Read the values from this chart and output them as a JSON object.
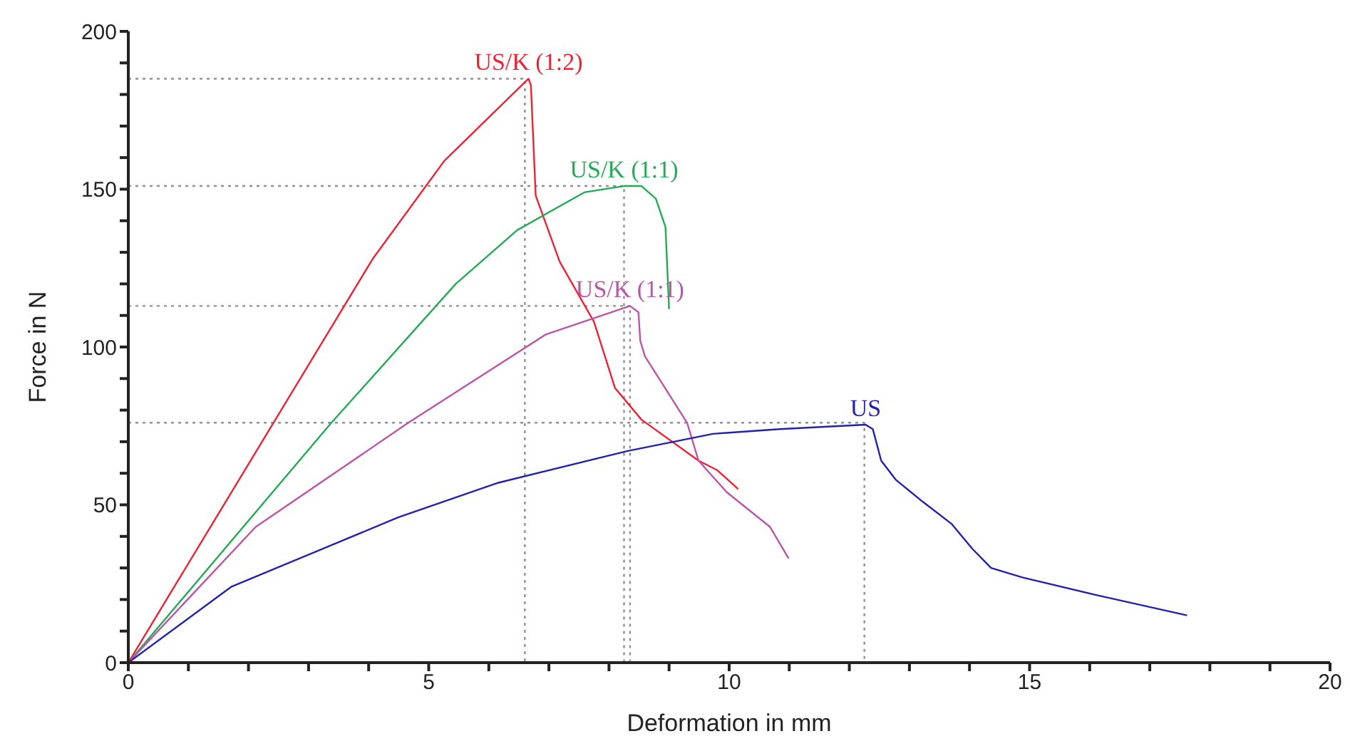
{
  "chart_data": {
    "type": "line",
    "xlabel": "Deformation in mm",
    "ylabel": "Force in N",
    "xlim": [
      0,
      20
    ],
    "ylim": [
      0,
      200
    ],
    "xticks": [
      0,
      {
        "value": 1,
        "label": null
      },
      {
        "value": 2,
        "label": null
      },
      {
        "value": 3,
        "label": null
      },
      {
        "value": 4,
        "label": null
      },
      5,
      {
        "value": 6,
        "label": null
      },
      {
        "value": 7,
        "label": null
      },
      {
        "value": 8,
        "label": null
      },
      {
        "value": 9,
        "label": null
      },
      10,
      {
        "value": 11,
        "label": null
      },
      {
        "value": 12,
        "label": null
      },
      {
        "value": 13,
        "label": null
      },
      {
        "value": 14,
        "label": null
      },
      15,
      {
        "value": 16,
        "label": null
      },
      {
        "value": 17,
        "label": null
      },
      {
        "value": 18,
        "label": null
      },
      {
        "value": 19,
        "label": null
      },
      20
    ],
    "yticks": [
      0,
      {
        "value": 10,
        "label": null
      },
      {
        "value": 20,
        "label": null
      },
      {
        "value": 30,
        "label": null
      },
      {
        "value": 40,
        "label": null
      },
      50,
      {
        "value": 60,
        "label": null
      },
      {
        "value": 70,
        "label": null
      },
      {
        "value": 80,
        "label": null
      },
      {
        "value": 90,
        "label": null
      },
      100,
      {
        "value": 110,
        "label": null
      },
      {
        "value": 120,
        "label": null
      },
      {
        "value": 130,
        "label": null
      },
      {
        "value": 140,
        "label": null
      },
      150,
      {
        "value": 160,
        "label": null
      },
      {
        "value": 170,
        "label": null
      },
      {
        "value": 180,
        "label": null
      },
      {
        "value": 190,
        "label": null
      },
      200
    ],
    "grid": false,
    "legend": false,
    "marker": "none",
    "line_style": "solid",
    "series": [
      {
        "type": "line",
        "line_style": "dotted",
        "color": "#909090",
        "x": [
          0,
          6.6,
          6.6
        ],
        "values": [
          185,
          185,
          0
        ]
      },
      {
        "type": "line",
        "line_style": "dotted",
        "color": "#909090",
        "x": [
          0,
          8.25,
          8.25
        ],
        "values": [
          151,
          151,
          0
        ]
      },
      {
        "type": "line",
        "line_style": "dotted",
        "color": "#909090",
        "x": [
          0,
          8.35,
          8.35
        ],
        "values": [
          113,
          113,
          0
        ]
      },
      {
        "type": "line",
        "line_style": "dotted",
        "color": "#909090",
        "x": [
          0,
          12.25,
          12.25
        ],
        "values": [
          76,
          76,
          0
        ]
      },
      {
        "name": "US/K (1:2)",
        "color": "#ee2233",
        "x": [
          0,
          4.07,
          5.26,
          6.66,
          6.7,
          6.78,
          7.18,
          7.75,
          8.1,
          8.54,
          9.49,
          9.8,
          10.15
        ],
        "values": [
          0,
          128,
          159,
          185,
          183,
          148,
          127,
          108,
          87,
          77,
          64,
          61,
          55
        ]
      },
      {
        "name": "US/K (1:1)",
        "color": "#22aa55",
        "x": [
          0,
          3.38,
          5.45,
          6.47,
          7.59,
          8.25,
          8.54,
          8.78,
          8.94,
          9.0
        ],
        "values": [
          0,
          76,
          120,
          137,
          149,
          151,
          151,
          147,
          138,
          112
        ]
      },
      {
        "name": "US/K (1:1)",
        "color": "#bb55aa",
        "x": [
          0,
          2.12,
          4.66,
          6.95,
          8.35,
          8.49,
          8.52,
          8.6,
          9.3,
          9.49,
          9.96,
          10.68,
          10.99
        ],
        "values": [
          0,
          43,
          76,
          104,
          113,
          111,
          102,
          97,
          76,
          64,
          54,
          43,
          33
        ]
      },
      {
        "name": "US",
        "color": "#2222aa",
        "x": [
          0,
          1.71,
          4.49,
          6.16,
          8.3,
          9.73,
          10.84,
          12.27,
          12.39,
          12.53,
          12.77,
          13.22,
          13.7,
          14.05,
          14.36,
          14.88,
          16.07,
          17.62
        ],
        "values": [
          0,
          24,
          46,
          57,
          67,
          72.5,
          74,
          75.4,
          74,
          64,
          58,
          51,
          44,
          36,
          30,
          27,
          21.6,
          15
        ]
      }
    ]
  }
}
